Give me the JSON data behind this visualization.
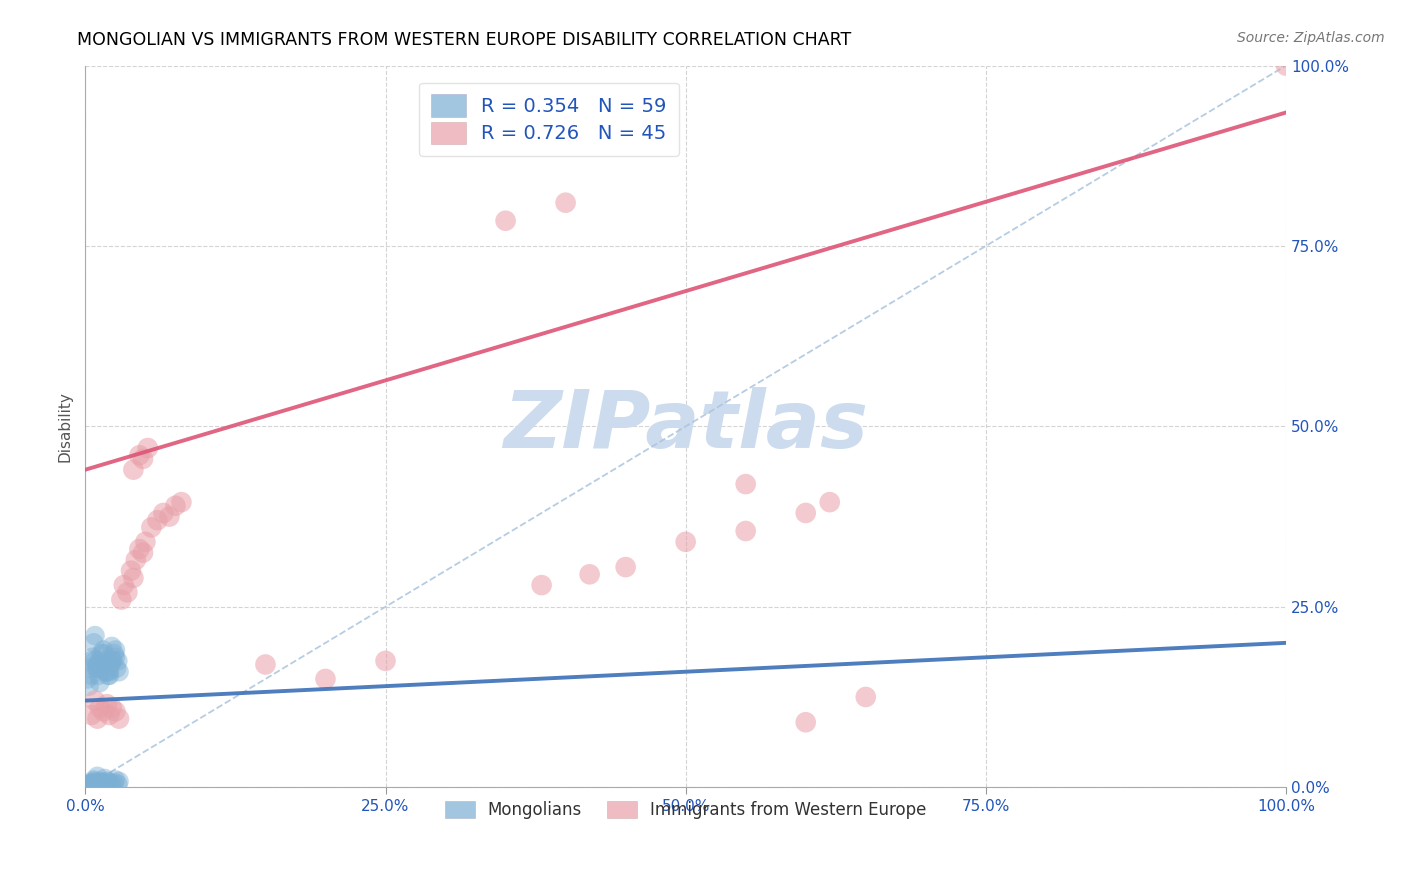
{
  "title": "MONGOLIAN VS IMMIGRANTS FROM WESTERN EUROPE DISABILITY CORRELATION CHART",
  "source": "Source: ZipAtlas.com",
  "ylabel": "Disability",
  "xlim": [
    0,
    1
  ],
  "ylim": [
    0,
    1
  ],
  "xtick_labels": [
    "0.0%",
    "25.0%",
    "50.0%",
    "75.0%",
    "100.0%"
  ],
  "xtick_positions": [
    0,
    0.25,
    0.5,
    0.75,
    1.0
  ],
  "ytick_labels_right": [
    "100.0%",
    "75.0%",
    "50.0%",
    "25.0%",
    "0.0%"
  ],
  "ytick_positions": [
    1.0,
    0.75,
    0.5,
    0.25,
    0.0
  ],
  "blue_R": 0.354,
  "blue_N": 59,
  "pink_R": 0.726,
  "pink_N": 45,
  "blue_color": "#7bafd4",
  "pink_color": "#e8a0a8",
  "blue_line_color": "#4477bb",
  "pink_line_color": "#dd5577",
  "diag_color": "#aac4dd",
  "grid_color": "#d0d0d0",
  "watermark_color": "#ccdcee",
  "legend_label_blue": "Mongolians",
  "legend_label_pink": "Immigrants from Western Europe",
  "blue_line_x": [
    0,
    1.0
  ],
  "blue_line_y": [
    0.12,
    0.2
  ],
  "pink_line_x": [
    0,
    1.0
  ],
  "pink_line_y": [
    0.44,
    0.935
  ],
  "blue_pts_x": [
    0.005,
    0.008,
    0.01,
    0.012,
    0.015,
    0.018,
    0.02,
    0.022,
    0.025,
    0.005,
    0.007,
    0.01,
    0.013,
    0.016,
    0.019,
    0.022,
    0.025,
    0.028,
    0.003,
    0.006,
    0.009,
    0.012,
    0.015,
    0.018,
    0.021,
    0.024,
    0.027,
    0.004,
    0.007,
    0.01,
    0.013,
    0.016,
    0.019,
    0.022,
    0.025,
    0.028,
    0.002,
    0.005,
    0.008,
    0.011,
    0.014,
    0.017,
    0.02,
    0.023,
    0.026,
    0.003,
    0.006,
    0.009,
    0.012,
    0.015,
    0.018,
    0.021,
    0.024,
    0.027,
    0.002,
    0.005,
    0.008,
    0.011,
    0.014
  ],
  "blue_pts_y": [
    0.175,
    0.21,
    0.165,
    0.145,
    0.19,
    0.175,
    0.16,
    0.195,
    0.18,
    0.155,
    0.2,
    0.17,
    0.185,
    0.165,
    0.155,
    0.175,
    0.19,
    0.16,
    0.14,
    0.18,
    0.165,
    0.175,
    0.185,
    0.16,
    0.17,
    0.185,
    0.175,
    0.005,
    0.01,
    0.015,
    0.008,
    0.012,
    0.007,
    0.005,
    0.01,
    0.008,
    0.15,
    0.165,
    0.175,
    0.155,
    0.17,
    0.16,
    0.155,
    0.175,
    0.165,
    0.003,
    0.007,
    0.004,
    0.006,
    0.005,
    0.008,
    0.003,
    0.006,
    0.004,
    0.002,
    0.005,
    0.008,
    0.003,
    0.006
  ],
  "pink_pts_x": [
    0.005,
    0.008,
    0.01,
    0.012,
    0.015,
    0.018,
    0.02,
    0.022,
    0.025,
    0.028,
    0.03,
    0.032,
    0.035,
    0.038,
    0.04,
    0.042,
    0.045,
    0.048,
    0.05,
    0.055,
    0.06,
    0.065,
    0.07,
    0.075,
    0.08,
    0.04,
    0.045,
    0.048,
    0.052,
    0.15,
    0.2,
    0.25,
    0.38,
    0.42,
    0.45,
    0.5,
    0.55,
    0.6,
    0.62,
    1.0,
    0.35,
    0.4,
    0.55,
    0.6,
    0.65
  ],
  "pink_pts_y": [
    0.1,
    0.12,
    0.095,
    0.11,
    0.105,
    0.115,
    0.1,
    0.11,
    0.105,
    0.095,
    0.26,
    0.28,
    0.27,
    0.3,
    0.29,
    0.315,
    0.33,
    0.325,
    0.34,
    0.36,
    0.37,
    0.38,
    0.375,
    0.39,
    0.395,
    0.44,
    0.46,
    0.455,
    0.47,
    0.17,
    0.15,
    0.175,
    0.28,
    0.295,
    0.305,
    0.34,
    0.355,
    0.38,
    0.395,
    1.0,
    0.785,
    0.81,
    0.42,
    0.09,
    0.125
  ]
}
